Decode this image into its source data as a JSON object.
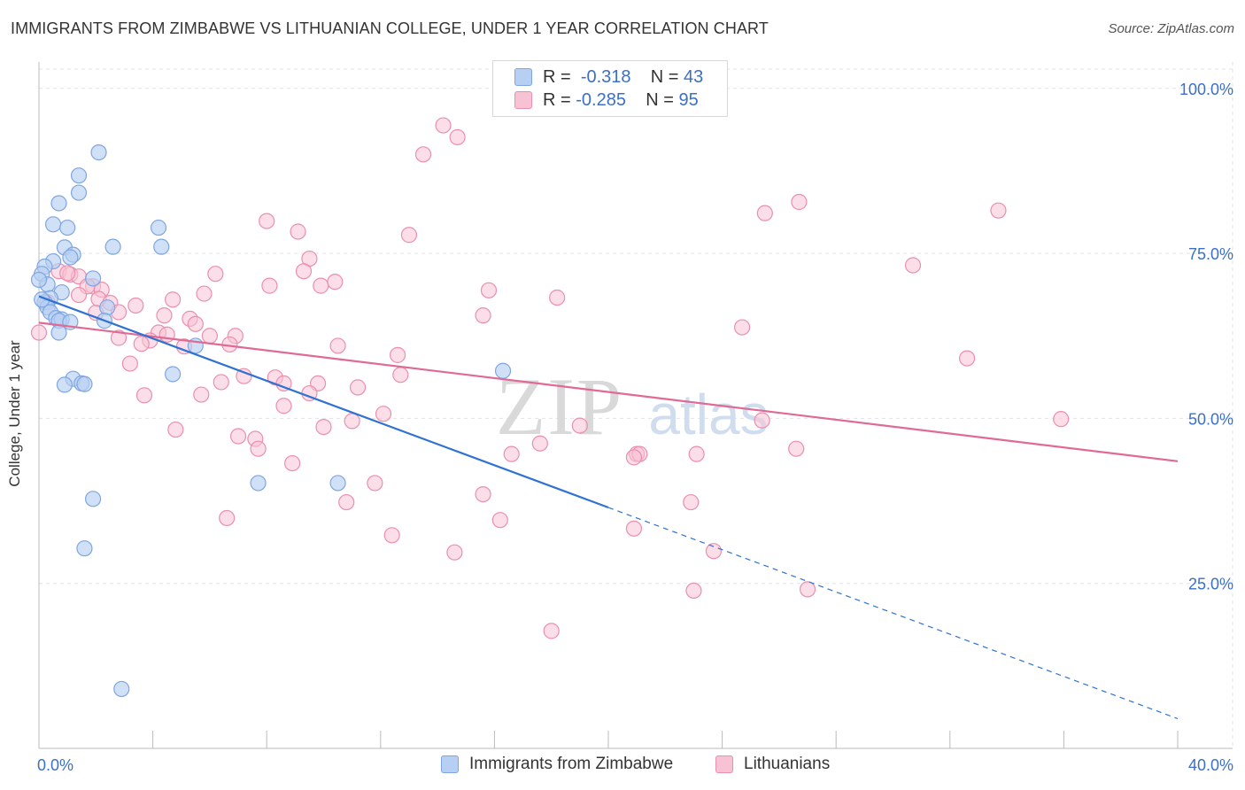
{
  "title": "IMMIGRANTS FROM ZIMBABWE VS LITHUANIAN COLLEGE, UNDER 1 YEAR CORRELATION CHART",
  "source": "Source: ZipAtlas.com",
  "watermark": {
    "zip": "ZIP",
    "atlas": "atlas"
  },
  "legend": {
    "rows": [
      {
        "r_label": "R =",
        "r_value": "-0.318",
        "n_label": "N =",
        "n_value": "43"
      },
      {
        "r_label": "R =",
        "r_value": "-0.285",
        "n_label": "N =",
        "n_value": "95"
      }
    ]
  },
  "bottom_legend": {
    "series1": "Immigrants from Zimbabwe",
    "series2": "Lithuanians"
  },
  "colors": {
    "blue_fill": "#b7cff2",
    "blue_stroke": "#7fa6e0",
    "blue_line": "#2f72d3",
    "pink_fill": "#f7c3d4",
    "pink_stroke": "#eb8fae",
    "pink_line": "#e06a95",
    "tick_label": "#3b6fc9",
    "grid": "#e3e3e3"
  },
  "chart_data": {
    "type": "scatter",
    "title": "IMMIGRANTS FROM ZIMBABWE VS LITHUANIAN COLLEGE, UNDER 1 YEAR CORRELATION CHART",
    "xlabel": "",
    "ylabel": "College, Under 1 year",
    "xlim": [
      0,
      40
    ],
    "ylim": [
      0,
      104
    ],
    "x_tick_labels": [
      "0.0%",
      "40.0%"
    ],
    "y_ticks": [
      25,
      50,
      75,
      100
    ],
    "y_tick_labels": [
      "25.0%",
      "50.0%",
      "75.0%",
      "100.0%"
    ],
    "grid": true,
    "series": [
      {
        "name": "Immigrants from Zimbabwe",
        "r": -0.318,
        "n": 43,
        "trend": {
          "x0": 0,
          "y0": 68.5,
          "x1": 20,
          "y1": 36.5,
          "x_dash_end": 40,
          "y_dash_end": 4.5
        },
        "points": [
          [
            2.1,
            90.3
          ],
          [
            1.4,
            86.8
          ],
          [
            1.4,
            84.2
          ],
          [
            0.7,
            82.6
          ],
          [
            0.5,
            79.4
          ],
          [
            1.0,
            78.9
          ],
          [
            4.2,
            78.9
          ],
          [
            2.6,
            76.0
          ],
          [
            4.3,
            76.0
          ],
          [
            0.9,
            75.9
          ],
          [
            1.2,
            74.8
          ],
          [
            1.1,
            74.4
          ],
          [
            0.5,
            73.8
          ],
          [
            0.2,
            73.0
          ],
          [
            0.1,
            71.9
          ],
          [
            1.9,
            71.2
          ],
          [
            0.3,
            70.3
          ],
          [
            0.8,
            69.1
          ],
          [
            0.4,
            68.2
          ],
          [
            0.2,
            67.6
          ],
          [
            0.3,
            66.8
          ],
          [
            0.4,
            66.1
          ],
          [
            2.4,
            66.8
          ],
          [
            0.6,
            65.2
          ],
          [
            0.8,
            65.0
          ],
          [
            0.7,
            64.8
          ],
          [
            1.1,
            64.6
          ],
          [
            2.3,
            64.8
          ],
          [
            0.7,
            63.0
          ],
          [
            5.5,
            61.0
          ],
          [
            1.2,
            56.0
          ],
          [
            4.7,
            56.7
          ],
          [
            16.3,
            57.2
          ],
          [
            0.9,
            55.1
          ],
          [
            1.5,
            55.3
          ],
          [
            1.6,
            55.2
          ],
          [
            7.7,
            40.2
          ],
          [
            10.5,
            40.2
          ],
          [
            1.9,
            37.8
          ],
          [
            1.6,
            30.3
          ],
          [
            2.9,
            9.0
          ],
          [
            0.0,
            71.0
          ],
          [
            0.1,
            68.0
          ]
        ]
      },
      {
        "name": "Lithuanians",
        "r": -0.285,
        "n": 95,
        "trend": {
          "x0": 0,
          "y0": 64.5,
          "x1": 40,
          "y1": 43.5
        },
        "points": [
          [
            14.2,
            94.4
          ],
          [
            14.7,
            92.6
          ],
          [
            13.5,
            90.0
          ],
          [
            25.5,
            81.1
          ],
          [
            33.7,
            81.5
          ],
          [
            26.7,
            82.8
          ],
          [
            8.0,
            79.9
          ],
          [
            9.1,
            78.3
          ],
          [
            13.0,
            77.8
          ],
          [
            9.5,
            74.2
          ],
          [
            30.7,
            73.2
          ],
          [
            9.3,
            72.3
          ],
          [
            6.2,
            71.9
          ],
          [
            0.7,
            72.3
          ],
          [
            1.1,
            71.8
          ],
          [
            1.4,
            71.5
          ],
          [
            1.9,
            70.0
          ],
          [
            10.4,
            70.7
          ],
          [
            8.1,
            70.1
          ],
          [
            9.9,
            70.1
          ],
          [
            1.7,
            70.0
          ],
          [
            2.2,
            69.5
          ],
          [
            15.8,
            69.4
          ],
          [
            5.8,
            68.9
          ],
          [
            18.2,
            68.3
          ],
          [
            1.4,
            68.7
          ],
          [
            2.1,
            68.1
          ],
          [
            4.7,
            68.0
          ],
          [
            0.3,
            67.6
          ],
          [
            2.5,
            67.5
          ],
          [
            3.4,
            67.1
          ],
          [
            2.8,
            66.1
          ],
          [
            5.3,
            65.1
          ],
          [
            4.4,
            65.6
          ],
          [
            15.6,
            65.6
          ],
          [
            5.5,
            64.3
          ],
          [
            0.0,
            63.0
          ],
          [
            24.7,
            63.8
          ],
          [
            4.2,
            63.0
          ],
          [
            4.5,
            62.7
          ],
          [
            6.9,
            62.5
          ],
          [
            2.8,
            62.2
          ],
          [
            6.0,
            62.5
          ],
          [
            3.9,
            61.8
          ],
          [
            3.6,
            61.3
          ],
          [
            6.7,
            61.2
          ],
          [
            10.5,
            61.0
          ],
          [
            5.1,
            60.9
          ],
          [
            12.6,
            59.6
          ],
          [
            32.6,
            59.1
          ],
          [
            3.2,
            58.3
          ],
          [
            12.7,
            56.6
          ],
          [
            7.2,
            56.4
          ],
          [
            8.3,
            56.2
          ],
          [
            6.4,
            55.5
          ],
          [
            8.6,
            55.3
          ],
          [
            9.8,
            55.3
          ],
          [
            11.2,
            54.7
          ],
          [
            9.5,
            53.8
          ],
          [
            5.7,
            53.6
          ],
          [
            3.7,
            53.5
          ],
          [
            8.6,
            51.9
          ],
          [
            12.1,
            50.7
          ],
          [
            11.0,
            49.6
          ],
          [
            25.4,
            49.7
          ],
          [
            35.9,
            49.9
          ],
          [
            10.0,
            48.7
          ],
          [
            19.0,
            48.9
          ],
          [
            4.8,
            48.3
          ],
          [
            7.0,
            47.3
          ],
          [
            7.6,
            46.9
          ],
          [
            17.6,
            46.2
          ],
          [
            7.7,
            45.4
          ],
          [
            26.6,
            45.4
          ],
          [
            21.0,
            44.6
          ],
          [
            21.1,
            44.6
          ],
          [
            16.6,
            44.6
          ],
          [
            23.1,
            44.6
          ],
          [
            20.9,
            44.1
          ],
          [
            8.9,
            43.2
          ],
          [
            11.8,
            40.2
          ],
          [
            15.6,
            38.5
          ],
          [
            10.8,
            37.3
          ],
          [
            22.9,
            37.3
          ],
          [
            6.6,
            34.9
          ],
          [
            16.2,
            34.6
          ],
          [
            20.9,
            33.3
          ],
          [
            12.4,
            32.3
          ],
          [
            14.6,
            29.7
          ],
          [
            23.7,
            29.9
          ],
          [
            23.0,
            23.9
          ],
          [
            27.0,
            24.1
          ],
          [
            18.0,
            17.8
          ],
          [
            1.0,
            72.0
          ],
          [
            2.0,
            66.0
          ]
        ]
      }
    ]
  }
}
